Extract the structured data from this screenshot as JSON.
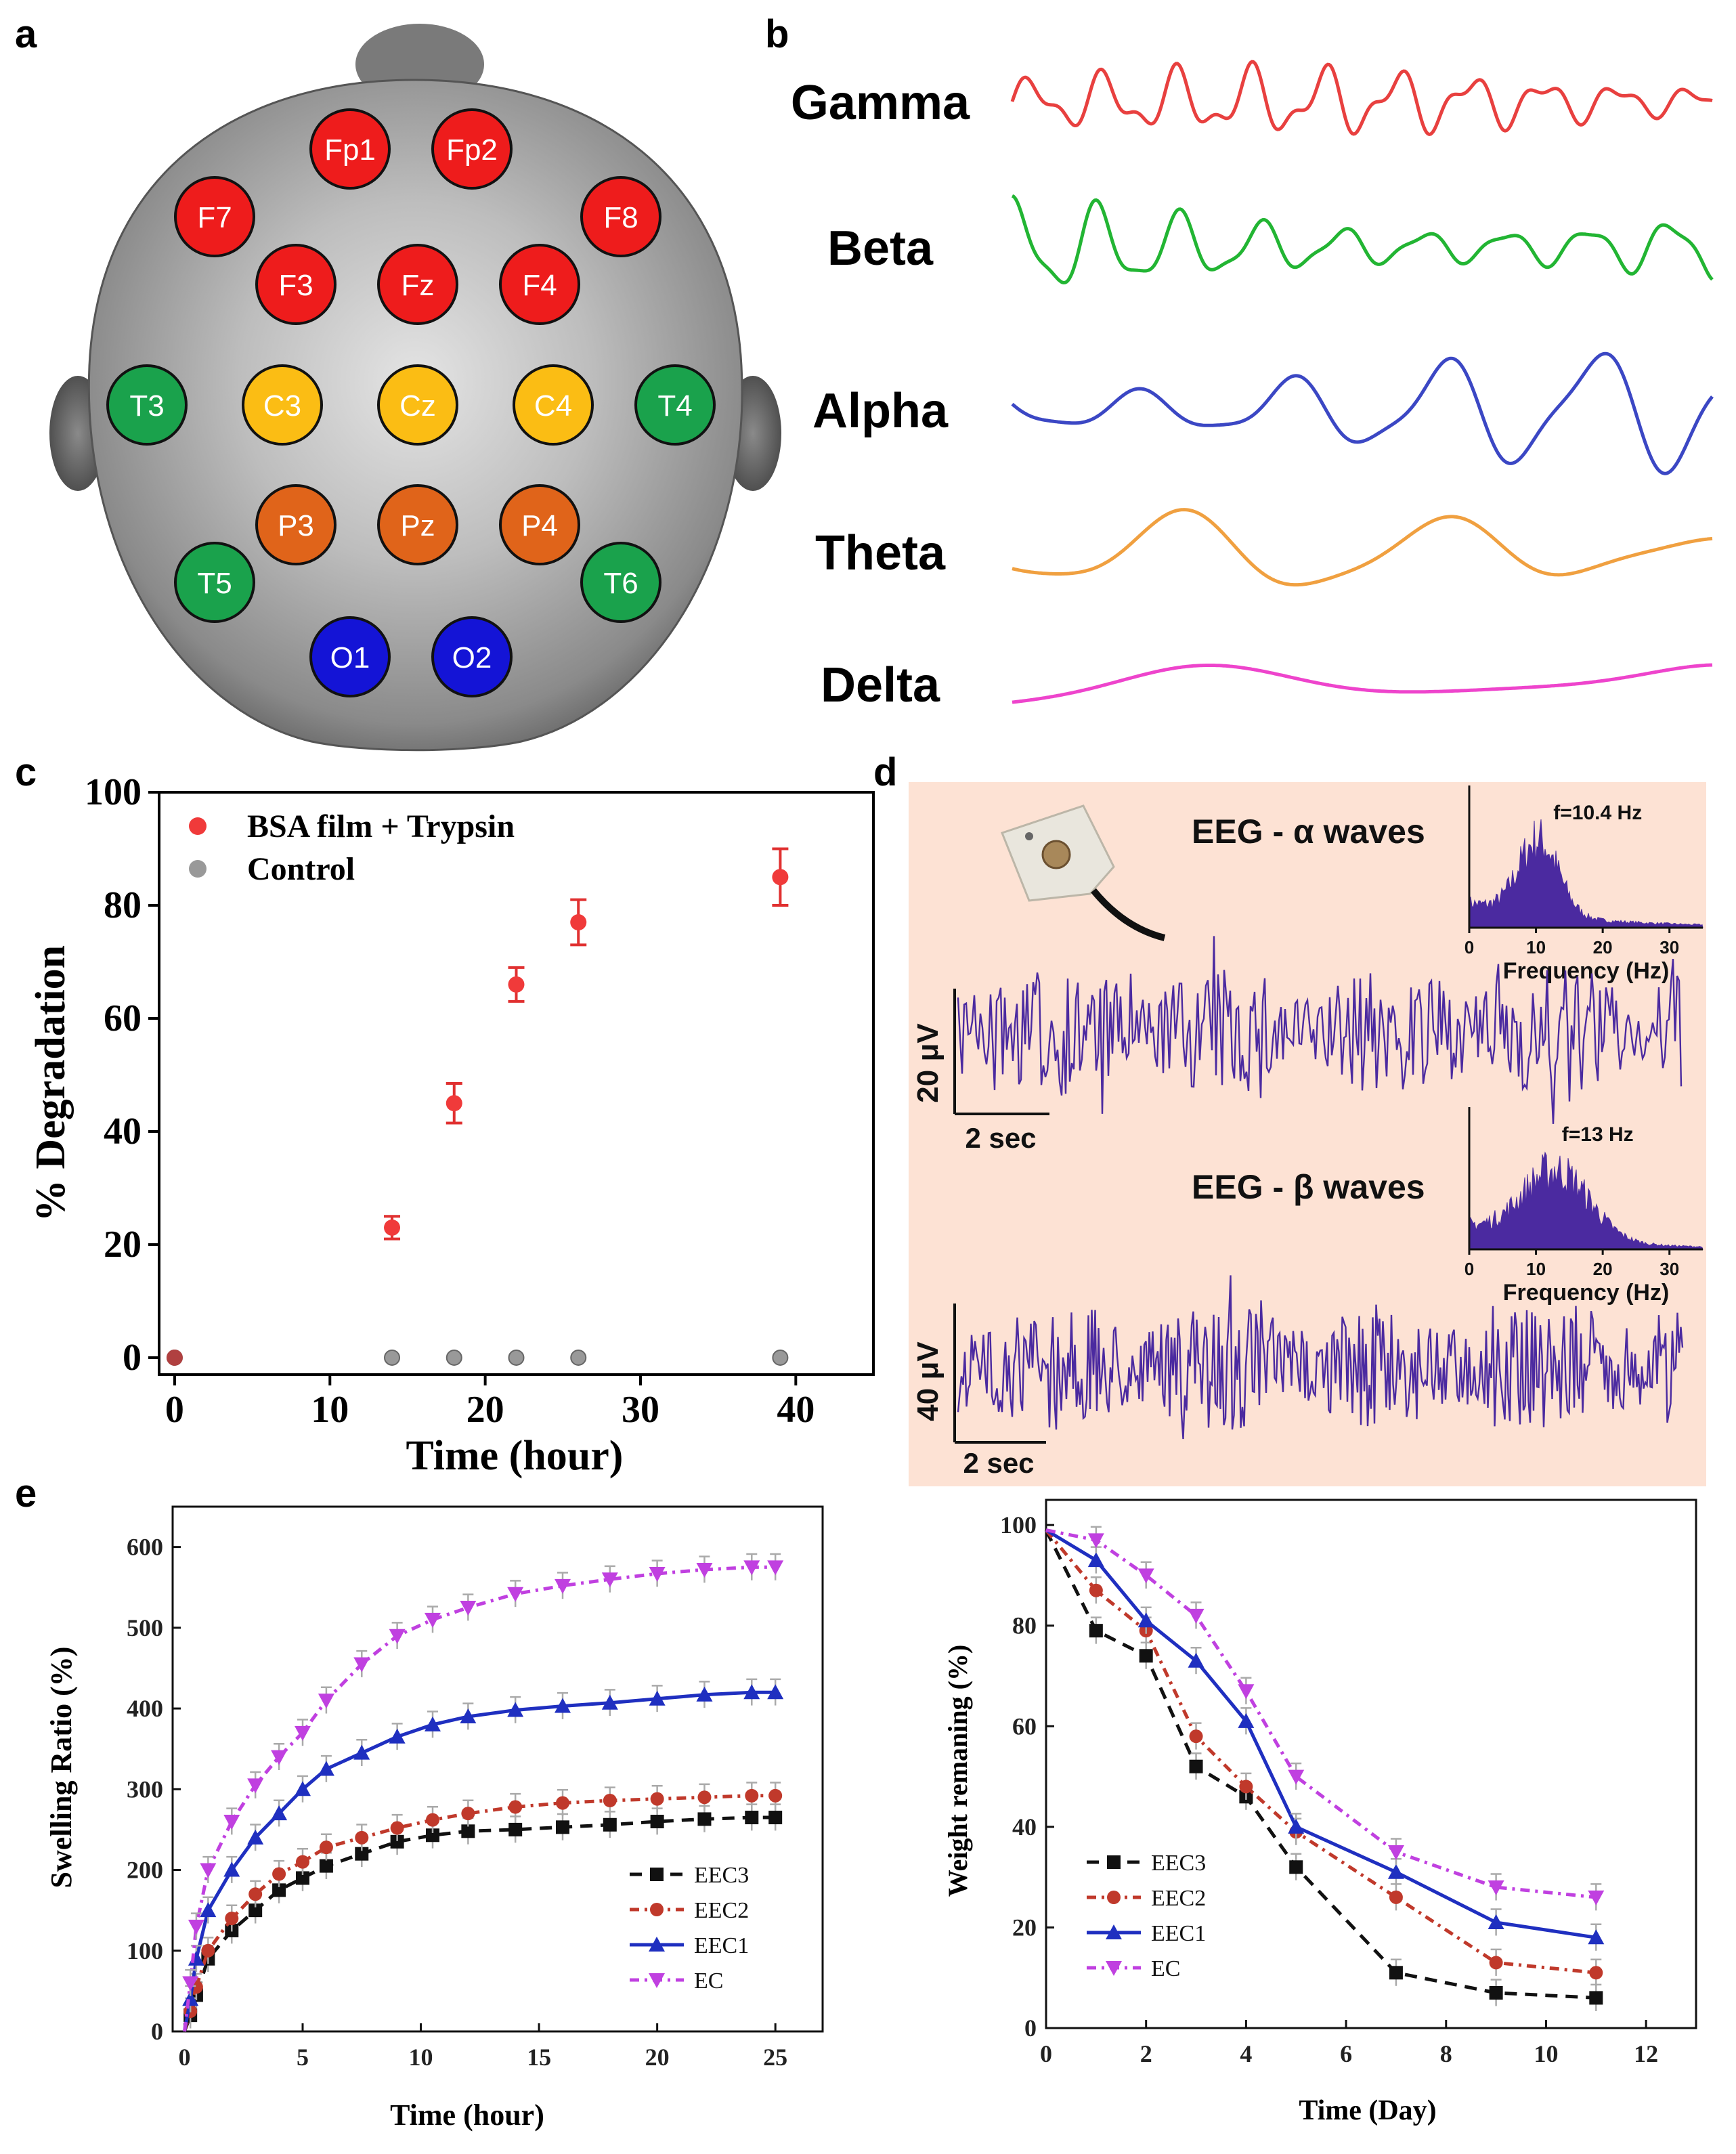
{
  "panels": {
    "a": "a",
    "b": "b",
    "c": "c",
    "d": "d",
    "e": "e"
  },
  "electrodes": [
    {
      "label": "Fp1",
      "color": "#ee1c1c"
    },
    {
      "label": "Fp2",
      "color": "#ee1c1c"
    },
    {
      "label": "F7",
      "color": "#ee1c1c"
    },
    {
      "label": "F8",
      "color": "#ee1c1c"
    },
    {
      "label": "F3",
      "color": "#ee1c1c"
    },
    {
      "label": "Fz",
      "color": "#ee1c1c"
    },
    {
      "label": "F4",
      "color": "#ee1c1c"
    },
    {
      "label": "T3",
      "color": "#1aa24c"
    },
    {
      "label": "C3",
      "color": "#fbbd14"
    },
    {
      "label": "Cz",
      "color": "#fbbd14"
    },
    {
      "label": "C4",
      "color": "#fbbd14"
    },
    {
      "label": "T4",
      "color": "#1aa24c"
    },
    {
      "label": "P3",
      "color": "#e0641a"
    },
    {
      "label": "Pz",
      "color": "#e0641a"
    },
    {
      "label": "P4",
      "color": "#e0641a"
    },
    {
      "label": "T5",
      "color": "#1aa24c"
    },
    {
      "label": "T6",
      "color": "#1aa24c"
    },
    {
      "label": "O1",
      "color": "#1414d6"
    },
    {
      "label": "O2",
      "color": "#1414d6"
    }
  ],
  "waves": [
    {
      "name": "Gamma",
      "color": "#e8403f"
    },
    {
      "name": "Beta",
      "color": "#22b533"
    },
    {
      "name": "Alpha",
      "color": "#3b47c4"
    },
    {
      "name": "Theta",
      "color": "#f0a040"
    },
    {
      "name": "Delta",
      "color": "#ee44cc"
    }
  ],
  "chart_data": [
    {
      "id": "c",
      "type": "scatter",
      "xlabel": "Time (hour)",
      "ylabel": "% Degradation",
      "xlim": [
        -1,
        45
      ],
      "ylim": [
        -3,
        100
      ],
      "xticks": [
        "0",
        "10",
        "20",
        "30",
        "40"
      ],
      "yticks": [
        "0",
        "20",
        "40",
        "60",
        "80",
        "100"
      ],
      "series": [
        {
          "name": "BSA film + Trypsin",
          "color": "#f03a3a",
          "x": [
            0,
            14,
            18,
            22,
            26,
            39
          ],
          "y": [
            0,
            23,
            45,
            66,
            77,
            85
          ],
          "err": [
            0,
            2,
            3.5,
            3,
            4,
            5
          ]
        },
        {
          "name": "Control",
          "color": "#999999",
          "x": [
            0,
            14,
            18,
            22,
            26,
            39
          ],
          "y": [
            0,
            0,
            0,
            0,
            0,
            0
          ]
        }
      ]
    },
    {
      "id": "d",
      "type": "line",
      "signals": [
        {
          "title": "EEG  - α waves",
          "scale_y": "20 μV",
          "scale_x": "2 sec",
          "inset": {
            "annotation": "f=10.4 Hz",
            "xlabel": "Frequency (Hz)",
            "xticks": [
              "0",
              "10",
              "20",
              "30"
            ],
            "peak_hz": 10.4
          }
        },
        {
          "title": "EEG  - β waves",
          "scale_y": "40 μV",
          "scale_x": "2 sec",
          "inset": {
            "annotation": "f=13 Hz",
            "xlabel": "Frequency (Hz)",
            "xticks": [
              "0",
              "10",
              "20",
              "30"
            ],
            "peak_hz": 13
          }
        }
      ]
    },
    {
      "id": "e-left",
      "type": "line",
      "xlabel": "Time (hour)",
      "ylabel": "Swelling Ratio (%)",
      "xlim": [
        -0.5,
        27
      ],
      "ylim": [
        0,
        650
      ],
      "xticks": [
        "0",
        "5",
        "10",
        "15",
        "20",
        "25"
      ],
      "yticks": [
        "0",
        "100",
        "200",
        "300",
        "400",
        "500",
        "600"
      ],
      "x": [
        0,
        0.25,
        0.5,
        1,
        2,
        3,
        4,
        5,
        6,
        7.5,
        9,
        10.5,
        12,
        14,
        16,
        18,
        20,
        22,
        24,
        25
      ],
      "series": [
        {
          "name": "EEC3",
          "color": "#111111",
          "values": [
            0,
            20,
            45,
            90,
            125,
            150,
            175,
            190,
            205,
            220,
            235,
            243,
            248,
            250,
            253,
            256,
            260,
            263,
            265,
            265
          ]
        },
        {
          "name": "EEC2",
          "color": "#c0392b",
          "values": [
            0,
            25,
            55,
            100,
            140,
            170,
            195,
            210,
            228,
            240,
            252,
            262,
            270,
            278,
            283,
            286,
            288,
            290,
            292,
            292
          ]
        },
        {
          "name": "EEC1",
          "color": "#1f2fc0",
          "values": [
            0,
            40,
            90,
            150,
            200,
            240,
            270,
            300,
            325,
            345,
            365,
            380,
            390,
            398,
            403,
            407,
            412,
            417,
            420,
            420
          ]
        },
        {
          "name": "EC",
          "color": "#c040e0",
          "values": [
            0,
            60,
            130,
            200,
            260,
            305,
            340,
            370,
            410,
            455,
            490,
            510,
            525,
            542,
            552,
            560,
            567,
            572,
            575,
            575
          ]
        }
      ]
    },
    {
      "id": "e-right",
      "type": "line",
      "xlabel": "Time (Day)",
      "ylabel": "Weight remaning (%)",
      "xlim": [
        0,
        13
      ],
      "ylim": [
        0,
        105
      ],
      "xticks": [
        "0",
        "2",
        "4",
        "6",
        "8",
        "10",
        "12"
      ],
      "yticks": [
        "0",
        "20",
        "40",
        "60",
        "80",
        "100"
      ],
      "x": [
        0,
        1,
        2,
        3,
        4,
        5,
        7,
        9,
        11
      ],
      "series": [
        {
          "name": "EEC3",
          "color": "#111111",
          "values": [
            99,
            79,
            74,
            52,
            46,
            32,
            11,
            7,
            6
          ]
        },
        {
          "name": "EEC2",
          "color": "#c0392b",
          "values": [
            99,
            87,
            79,
            58,
            48,
            39,
            26,
            13,
            11
          ]
        },
        {
          "name": "EEC1",
          "color": "#1f2fc0",
          "values": [
            99,
            93,
            81,
            73,
            61,
            40,
            31,
            21,
            18
          ]
        },
        {
          "name": "EC",
          "color": "#c040e0",
          "values": [
            99,
            97,
            90,
            82,
            67,
            50,
            35,
            28,
            26
          ]
        }
      ]
    }
  ]
}
